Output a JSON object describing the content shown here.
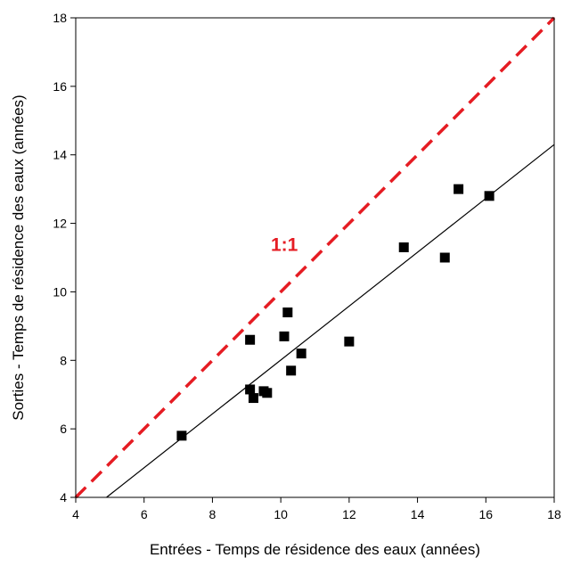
{
  "chart_data": {
    "type": "scatter",
    "xlabel": "Entrées - Temps de résidence des eaux (années)",
    "ylabel": "Sorties - Temps de résidence des eaux (années)",
    "xlim": [
      4,
      18
    ],
    "ylim": [
      4,
      18
    ],
    "x_ticks": [
      4,
      6,
      8,
      10,
      12,
      14,
      16,
      18
    ],
    "y_ticks": [
      4,
      6,
      8,
      10,
      12,
      14,
      16,
      18
    ],
    "x_tick_labels": [
      "4",
      "6",
      "8",
      "10",
      "12",
      "14",
      "16",
      "18"
    ],
    "y_tick_labels": [
      "4",
      "6",
      "8",
      "10",
      "12",
      "14",
      "16",
      "18"
    ],
    "grid": false,
    "series": [
      {
        "type": "scatter",
        "marker": "square",
        "color": "#000000",
        "points": [
          {
            "x": 7.1,
            "y": 5.8
          },
          {
            "x": 9.1,
            "y": 8.6
          },
          {
            "x": 9.1,
            "y": 7.15
          },
          {
            "x": 9.2,
            "y": 6.9
          },
          {
            "x": 9.5,
            "y": 7.1
          },
          {
            "x": 9.6,
            "y": 7.05
          },
          {
            "x": 10.1,
            "y": 8.7
          },
          {
            "x": 10.2,
            "y": 9.4
          },
          {
            "x": 10.3,
            "y": 7.7
          },
          {
            "x": 10.6,
            "y": 8.2
          },
          {
            "x": 12.0,
            "y": 8.55
          },
          {
            "x": 13.6,
            "y": 11.3
          },
          {
            "x": 14.8,
            "y": 11.0
          },
          {
            "x": 15.2,
            "y": 13.0
          },
          {
            "x": 16.1,
            "y": 12.8
          }
        ]
      },
      {
        "type": "line",
        "style": "solid",
        "color": "#000000",
        "x": [
          4.9,
          18
        ],
        "y": [
          4.0,
          14.3
        ]
      },
      {
        "type": "line",
        "style": "dashed",
        "color": "#e51c23",
        "x": [
          4,
          18
        ],
        "y": [
          4,
          18
        ]
      }
    ],
    "annotations": [
      {
        "text": "1:1",
        "x": 10.0,
        "y": 11.2,
        "color": "#e51c23"
      }
    ]
  }
}
